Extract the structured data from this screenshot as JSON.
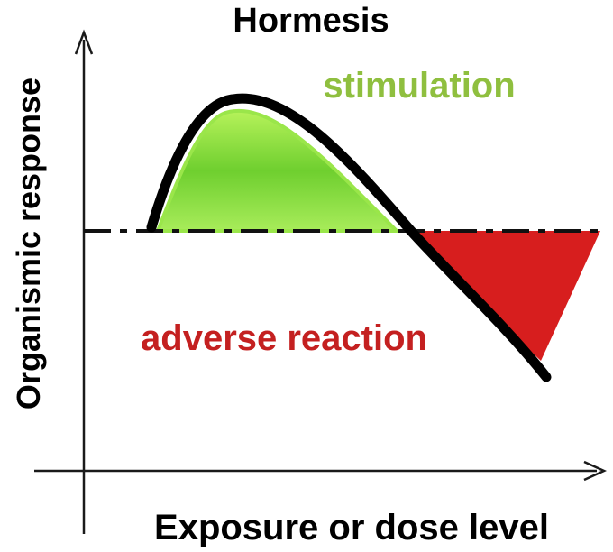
{
  "title": "Hormesis",
  "labels": {
    "stimulation": "stimulation",
    "adverse": "adverse reaction",
    "y_axis": "Organismic response",
    "x_axis": "Exposure or dose level"
  },
  "colors": {
    "stimulation_fill": "#7fd83a",
    "stimulation_text": "#8fbf3f",
    "adverse_fill": "#d71e1e",
    "adverse_text": "#c42020",
    "curve": "#000000",
    "axis": "#1a1a1a"
  }
}
